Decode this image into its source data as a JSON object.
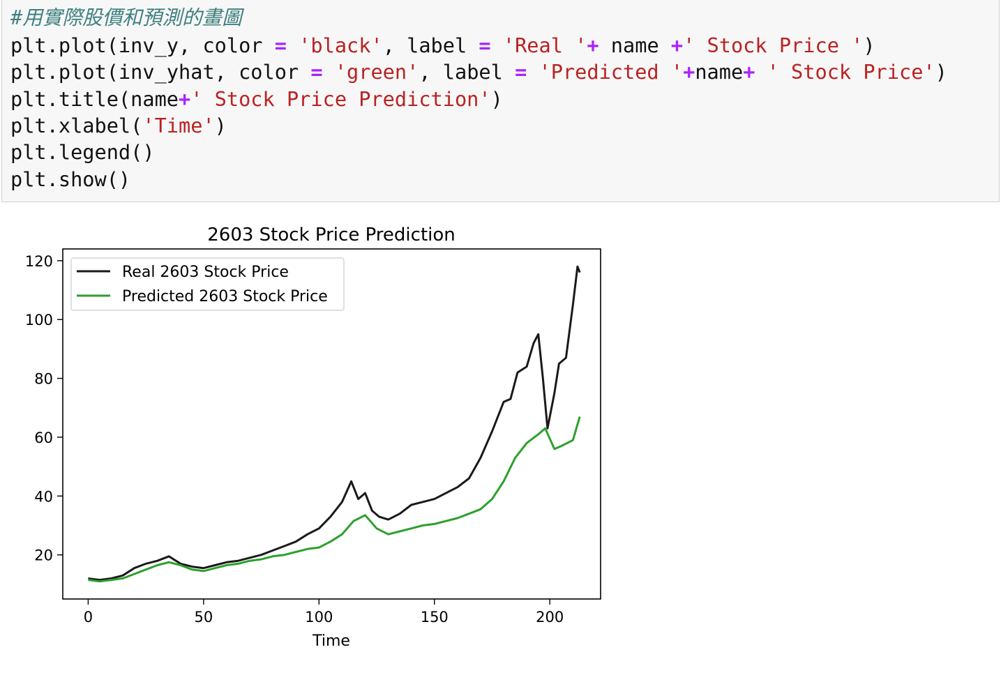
{
  "code": {
    "comment": "#用實際股價和預測的畫圖",
    "lines": [
      [
        {
          "t": "plt.plot(inv_y, color ",
          "k": "plain"
        },
        {
          "t": "=",
          "k": "op"
        },
        {
          "t": " ",
          "k": "plain"
        },
        {
          "t": "'black'",
          "k": "str"
        },
        {
          "t": ", label ",
          "k": "plain"
        },
        {
          "t": "=",
          "k": "op"
        },
        {
          "t": " ",
          "k": "plain"
        },
        {
          "t": "'Real '",
          "k": "str"
        },
        {
          "t": "+",
          "k": "op"
        },
        {
          "t": " name ",
          "k": "plain"
        },
        {
          "t": "+",
          "k": "op"
        },
        {
          "t": "' Stock Price '",
          "k": "str"
        },
        {
          "t": ")",
          "k": "plain"
        }
      ],
      [
        {
          "t": "plt.plot(inv_yhat, color ",
          "k": "plain"
        },
        {
          "t": "=",
          "k": "op"
        },
        {
          "t": " ",
          "k": "plain"
        },
        {
          "t": "'green'",
          "k": "str"
        },
        {
          "t": ", label ",
          "k": "plain"
        },
        {
          "t": "=",
          "k": "op"
        },
        {
          "t": " ",
          "k": "plain"
        },
        {
          "t": "'Predicted '",
          "k": "str"
        },
        {
          "t": "+",
          "k": "op"
        },
        {
          "t": "name",
          "k": "plain"
        },
        {
          "t": "+",
          "k": "op"
        },
        {
          "t": " ",
          "k": "plain"
        },
        {
          "t": "' Stock Price'",
          "k": "str"
        },
        {
          "t": ")",
          "k": "plain"
        }
      ],
      [
        {
          "t": "plt.title(name",
          "k": "plain"
        },
        {
          "t": "+",
          "k": "op"
        },
        {
          "t": "' Stock Price Prediction'",
          "k": "str"
        },
        {
          "t": ")",
          "k": "plain"
        }
      ],
      [
        {
          "t": "plt.xlabel(",
          "k": "plain"
        },
        {
          "t": "'Time'",
          "k": "str"
        },
        {
          "t": ")",
          "k": "plain"
        }
      ],
      [
        {
          "t": "plt.legend()",
          "k": "plain"
        }
      ],
      [
        {
          "t": "plt.show()",
          "k": "plain"
        }
      ]
    ]
  },
  "colors": {
    "real": "#1a1a1a",
    "predicted": "#2ca02c"
  },
  "chart_data": {
    "type": "line",
    "title": "2603 Stock Price Prediction",
    "xlabel": "Time",
    "ylabel": "",
    "xlim": [
      -11,
      222
    ],
    "ylim": [
      5,
      124
    ],
    "xticks": [
      0,
      50,
      100,
      150,
      200
    ],
    "yticks": [
      20,
      40,
      60,
      80,
      100,
      120
    ],
    "legend": "upper-left",
    "grid": false,
    "series": [
      {
        "name": "Real 2603 Stock Price",
        "color": "#1a1a1a",
        "points": [
          [
            0,
            12
          ],
          [
            5,
            11.5
          ],
          [
            10,
            12
          ],
          [
            15,
            13
          ],
          [
            20,
            15.5
          ],
          [
            25,
            17
          ],
          [
            30,
            18
          ],
          [
            35,
            19.5
          ],
          [
            40,
            17
          ],
          [
            45,
            16
          ],
          [
            50,
            15.5
          ],
          [
            55,
            16.5
          ],
          [
            60,
            17.5
          ],
          [
            65,
            18
          ],
          [
            70,
            19
          ],
          [
            75,
            20
          ],
          [
            80,
            21.5
          ],
          [
            85,
            23
          ],
          [
            90,
            24.5
          ],
          [
            95,
            27
          ],
          [
            100,
            29
          ],
          [
            105,
            33
          ],
          [
            110,
            38
          ],
          [
            114,
            45
          ],
          [
            117,
            39
          ],
          [
            120,
            41
          ],
          [
            123,
            35
          ],
          [
            126,
            33
          ],
          [
            130,
            32
          ],
          [
            135,
            34
          ],
          [
            140,
            37
          ],
          [
            145,
            38
          ],
          [
            150,
            39
          ],
          [
            155,
            41
          ],
          [
            160,
            43
          ],
          [
            165,
            46
          ],
          [
            170,
            53
          ],
          [
            175,
            62
          ],
          [
            180,
            72
          ],
          [
            183,
            73
          ],
          [
            186,
            82
          ],
          [
            190,
            84
          ],
          [
            193,
            92
          ],
          [
            195,
            95
          ],
          [
            197,
            80
          ],
          [
            199,
            63
          ],
          [
            202,
            75
          ],
          [
            204,
            85
          ],
          [
            207,
            87
          ],
          [
            210,
            105
          ],
          [
            212,
            118
          ],
          [
            213,
            116
          ]
        ]
      },
      {
        "name": "Predicted 2603 Stock Price",
        "color": "#2ca02c",
        "points": [
          [
            0,
            11.5
          ],
          [
            5,
            11
          ],
          [
            10,
            11.5
          ],
          [
            15,
            12
          ],
          [
            20,
            13.5
          ],
          [
            25,
            15
          ],
          [
            30,
            16.5
          ],
          [
            35,
            17.5
          ],
          [
            40,
            16.5
          ],
          [
            45,
            15
          ],
          [
            50,
            14.5
          ],
          [
            55,
            15.5
          ],
          [
            60,
            16.5
          ],
          [
            65,
            17
          ],
          [
            70,
            18
          ],
          [
            75,
            18.5
          ],
          [
            80,
            19.5
          ],
          [
            85,
            20
          ],
          [
            90,
            21
          ],
          [
            95,
            22
          ],
          [
            100,
            22.5
          ],
          [
            105,
            24.5
          ],
          [
            110,
            27
          ],
          [
            115,
            31.5
          ],
          [
            120,
            33.5
          ],
          [
            125,
            29
          ],
          [
            130,
            27
          ],
          [
            135,
            28
          ],
          [
            140,
            29
          ],
          [
            145,
            30
          ],
          [
            150,
            30.5
          ],
          [
            155,
            31.5
          ],
          [
            160,
            32.5
          ],
          [
            165,
            34
          ],
          [
            170,
            35.5
          ],
          [
            175,
            39
          ],
          [
            180,
            45
          ],
          [
            185,
            53
          ],
          [
            190,
            58
          ],
          [
            195,
            61
          ],
          [
            198,
            63
          ],
          [
            202,
            56
          ],
          [
            205,
            57
          ],
          [
            210,
            59
          ],
          [
            213,
            67
          ]
        ]
      }
    ]
  }
}
